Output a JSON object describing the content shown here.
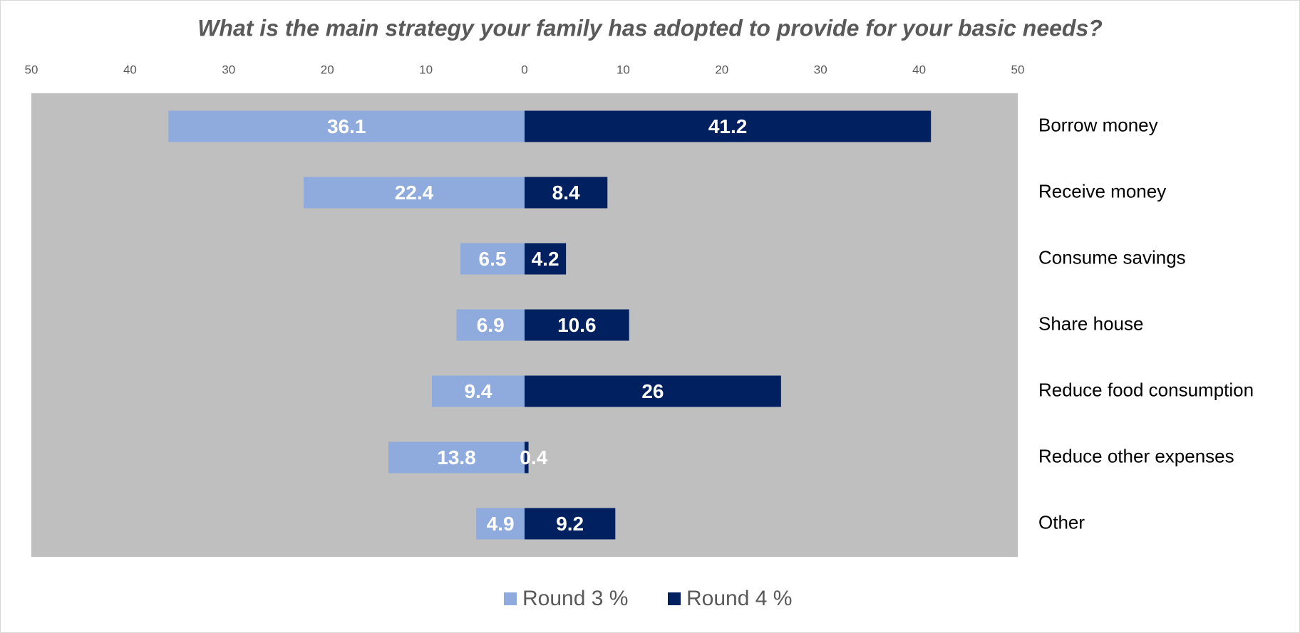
{
  "chart_data": {
    "type": "butterfly",
    "title": "What is the main strategy your family has adopted to provide for your basic needs?",
    "categories": [
      "Borrow money",
      "Receive money",
      "Consume savings",
      "Share house",
      "Reduce food consumption",
      "Reduce other expenses",
      "Other"
    ],
    "series": [
      {
        "name": "Round 3 %",
        "color": "#8faadc",
        "values": [
          36.1,
          22.4,
          6.5,
          6.9,
          9.4,
          13.8,
          4.9
        ]
      },
      {
        "name": "Round 4 %",
        "color": "#002060",
        "values": [
          41.2,
          8.4,
          4.2,
          10.6,
          26,
          0.4,
          9.2
        ]
      }
    ],
    "xlim": [
      0,
      50
    ],
    "xticks": [
      0,
      10,
      20,
      30,
      40,
      50
    ],
    "plot_background": "#bfbfbf",
    "legend": "bottom"
  }
}
